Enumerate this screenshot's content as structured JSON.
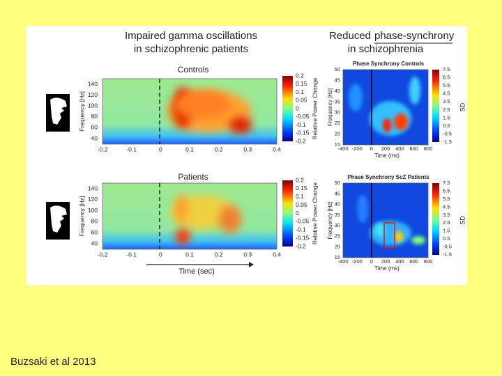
{
  "left_panel": {
    "title_lines": [
      "Impaired gamma oscillations",
      "in schizophrenic patients"
    ],
    "plots": [
      {
        "title": "Controls",
        "y_label": "Frequency [Hz]",
        "y_ticks": [
          140,
          120,
          100,
          80,
          60,
          40
        ],
        "x_ticks": [
          -0.2,
          -0.1,
          0,
          0.1,
          0.2,
          0.3,
          0.4
        ],
        "colorbar_ticks": [
          0.2,
          0.15,
          0.1,
          0.05,
          0,
          -0.05,
          -0.1,
          -0.15,
          -0.2
        ],
        "colorbar_label": "Relative Power Change"
      },
      {
        "title": "Patients",
        "y_label": "Frequency [Hz]",
        "y_ticks": [
          140,
          120,
          100,
          80,
          60,
          40
        ],
        "x_ticks": [
          -0.2,
          -0.1,
          0,
          0.1,
          0.2,
          0.3,
          0.4
        ],
        "colorbar_ticks": [
          0.2,
          0.15,
          0.1,
          0.05,
          0,
          -0.05,
          -0.1,
          -0.15,
          -0.2
        ],
        "colorbar_label": "Relative Power Change"
      }
    ],
    "x_label": "Time (sec)"
  },
  "right_panel": {
    "title_plain": "Reduced",
    "title_underlined": "phase-synchrony",
    "title_line2": "in schizophrenia",
    "plots": [
      {
        "title": "Phase Synchrony Controls",
        "y_label": "Frequency [Hz]",
        "y_ticks": [
          50,
          45,
          40,
          35,
          30,
          25,
          20,
          15
        ],
        "x_ticks": [
          -400,
          -200,
          0,
          200,
          400,
          600,
          800
        ],
        "x_label": "Time (ms)",
        "colorbar_ticks": [
          7.5,
          6.5,
          5.5,
          4.5,
          3.5,
          2.5,
          1.5,
          0.5,
          -0.5,
          -1.5
        ],
        "colorbar_label": "SD"
      },
      {
        "title": "Phase Synchrony ScZ Patients",
        "y_label": "Frequency [Hz]",
        "y_ticks": [
          50,
          45,
          40,
          35,
          30,
          25,
          20,
          15
        ],
        "x_ticks": [
          -400,
          -200,
          0,
          200,
          400,
          600,
          800
        ],
        "x_label": "Time (ms)",
        "colorbar_ticks": [
          7.5,
          6.5,
          5.5,
          4.5,
          3.5,
          2.5,
          1.5,
          0.5,
          -0.5,
          -1.5
        ],
        "colorbar_label": "SD"
      }
    ]
  },
  "footer": "Buzsaki et al 2013"
}
